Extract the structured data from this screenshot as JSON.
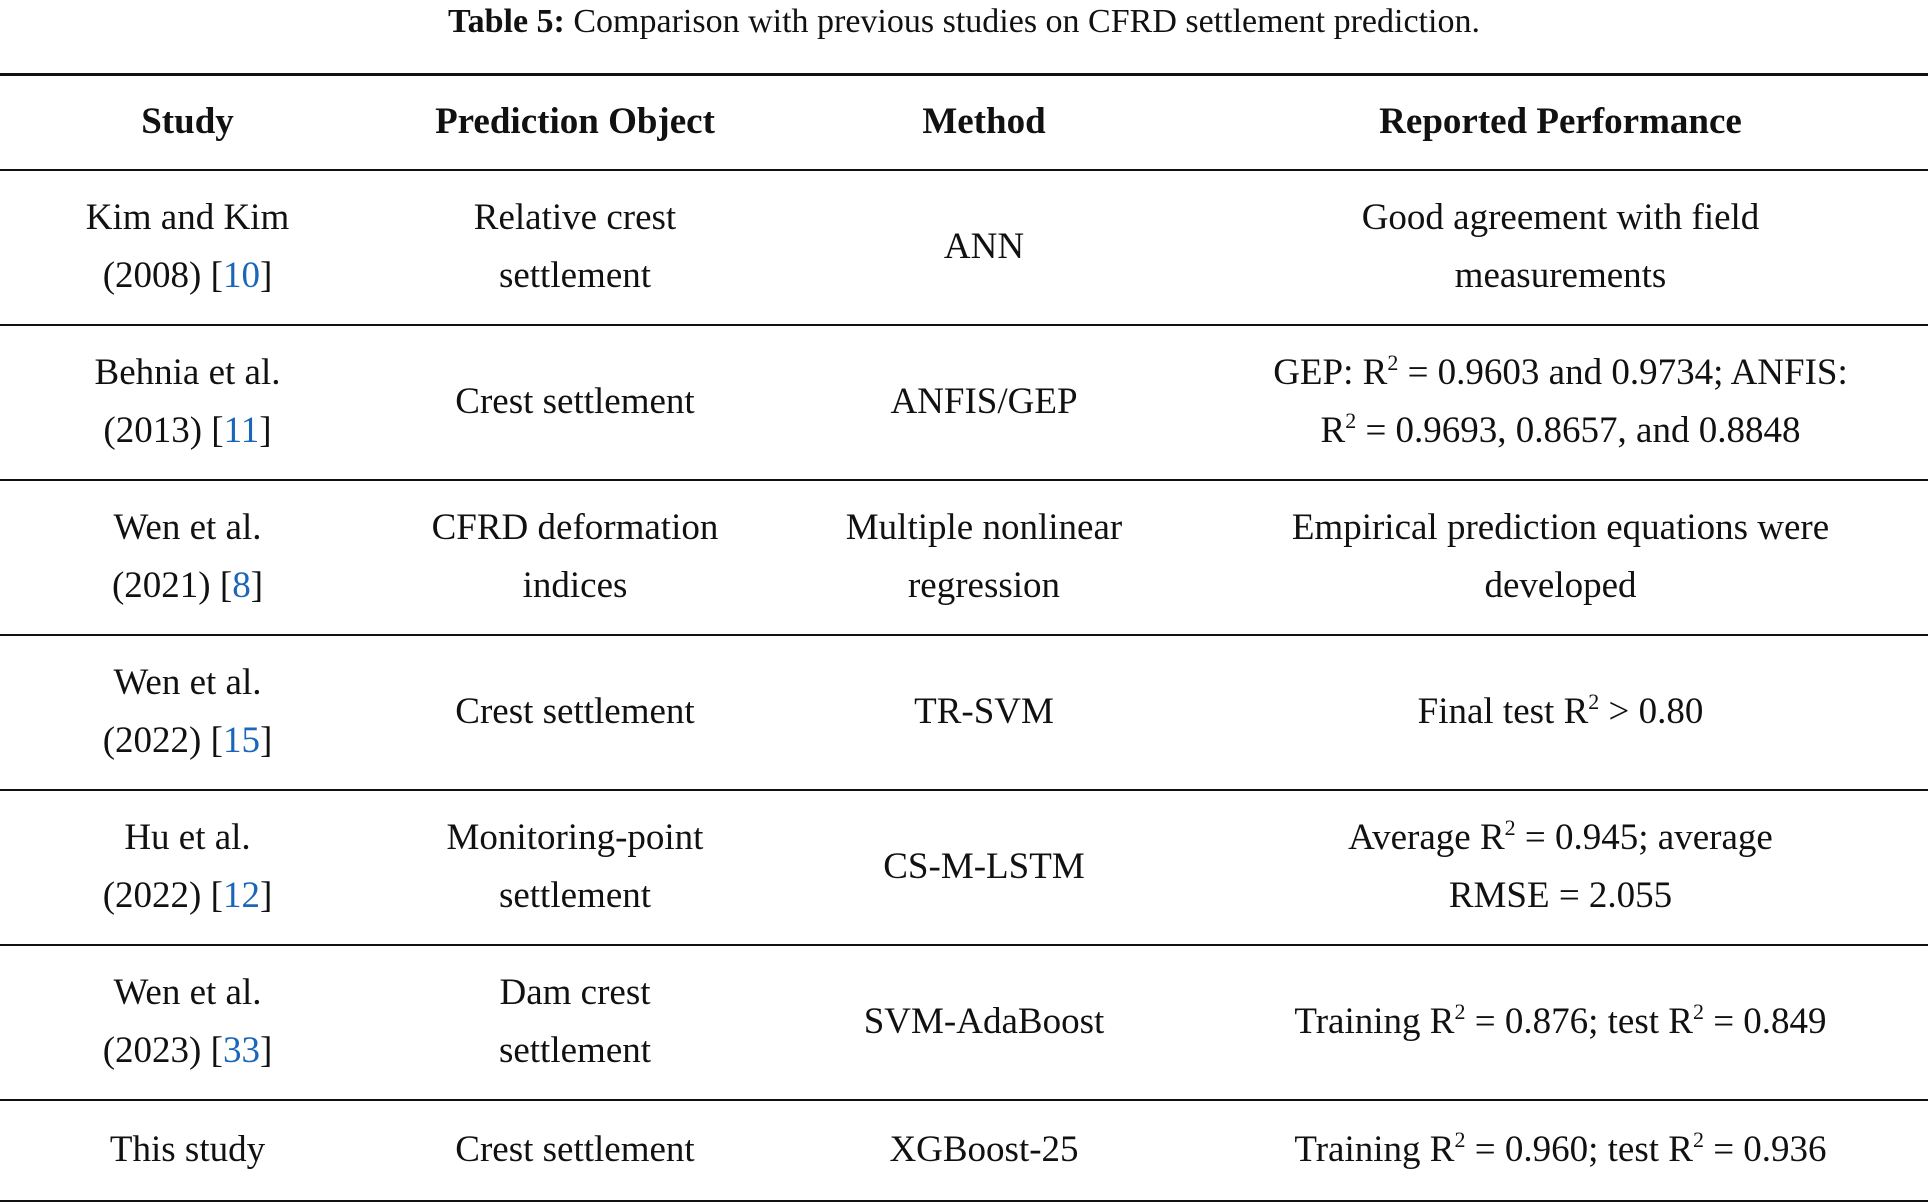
{
  "caption": {
    "label": "Table 5:",
    "text": " Comparison with previous studies on CFRD settlement prediction."
  },
  "table": {
    "header": [
      "Study",
      "Prediction Object",
      "Method",
      "Reported Performance"
    ],
    "rows": [
      [
        [
          [
            "Kim and Kim"
          ],
          [
            "(2008) [",
            {
              "ref": "10"
            },
            "]"
          ]
        ],
        [
          [
            "Relative crest"
          ],
          [
            "settlement"
          ]
        ],
        [
          [
            "ANN"
          ]
        ],
        [
          [
            "Good agreement with field"
          ],
          [
            "measurements"
          ]
        ]
      ],
      [
        [
          [
            "Behnia et al."
          ],
          [
            "(2013) [",
            {
              "ref": "11"
            },
            "]"
          ]
        ],
        [
          [
            "Crest settlement"
          ]
        ],
        [
          [
            "ANFIS/GEP"
          ]
        ],
        [
          [
            "GEP: R",
            {
              "sup": "2"
            },
            " = 0.9603 and 0.9734; ANFIS:"
          ],
          [
            "R",
            {
              "sup": "2"
            },
            " = 0.9693, 0.8657, and 0.8848"
          ]
        ]
      ],
      [
        [
          [
            "Wen et al."
          ],
          [
            "(2021) [",
            {
              "ref": "8"
            },
            "]"
          ]
        ],
        [
          [
            "CFRD deformation"
          ],
          [
            "indices"
          ]
        ],
        [
          [
            "Multiple nonlinear"
          ],
          [
            "regression"
          ]
        ],
        [
          [
            "Empirical prediction equations were"
          ],
          [
            "developed"
          ]
        ]
      ],
      [
        [
          [
            "Wen et al."
          ],
          [
            "(2022) [",
            {
              "ref": "15"
            },
            "]"
          ]
        ],
        [
          [
            "Crest settlement"
          ]
        ],
        [
          [
            "TR-SVM"
          ]
        ],
        [
          [
            "Final test R",
            {
              "sup": "2"
            },
            " > 0.80"
          ]
        ]
      ],
      [
        [
          [
            "Hu et al."
          ],
          [
            "(2022) [",
            {
              "ref": "12"
            },
            "]"
          ]
        ],
        [
          [
            "Monitoring-point"
          ],
          [
            "settlement"
          ]
        ],
        [
          [
            "CS-M-LSTM"
          ]
        ],
        [
          [
            "Average R",
            {
              "sup": "2"
            },
            " = 0.945; average"
          ],
          [
            "RMSE = 2.055"
          ]
        ]
      ],
      [
        [
          [
            "Wen et al."
          ],
          [
            "(2023) [",
            {
              "ref": "33"
            },
            "]"
          ]
        ],
        [
          [
            "Dam crest"
          ],
          [
            "settlement"
          ]
        ],
        [
          [
            "SVM-AdaBoost"
          ]
        ],
        [
          [
            "Training R",
            {
              "sup": "2"
            },
            " = 0.876; test R",
            {
              "sup": "2"
            },
            " = 0.849"
          ]
        ]
      ],
      [
        [
          [
            "This study"
          ]
        ],
        [
          [
            "Crest settlement"
          ]
        ],
        [
          [
            "XGBoost-25"
          ]
        ],
        [
          [
            "Training R",
            {
              "sup": "2"
            },
            " = 0.960; test R",
            {
              "sup": "2"
            },
            " = 0.936"
          ]
        ]
      ]
    ]
  }
}
